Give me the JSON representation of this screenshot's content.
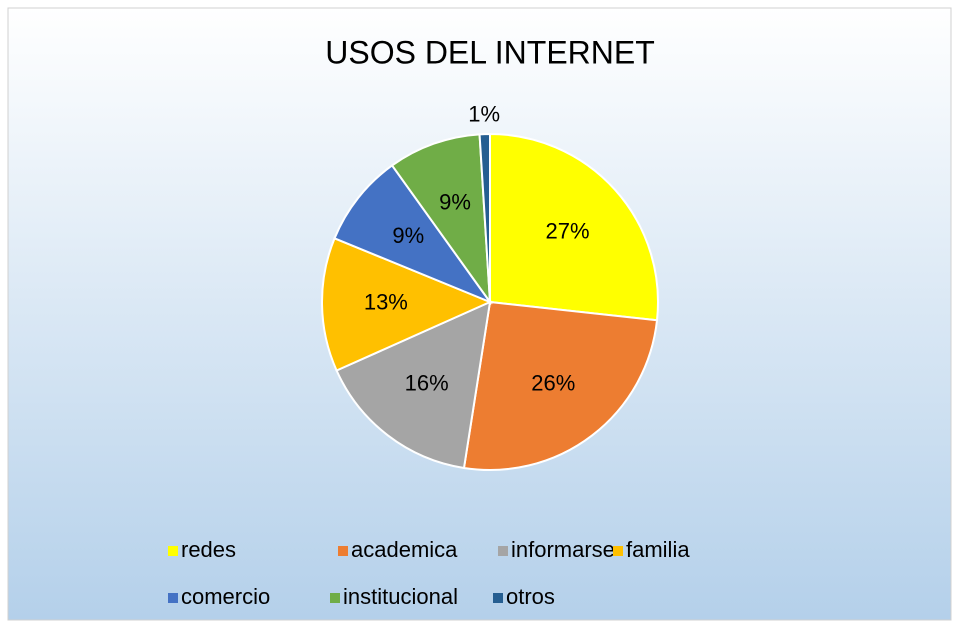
{
  "chart_data": {
    "type": "pie",
    "title": "USOS DEL INTERNET",
    "categories": [
      "redes",
      "academica",
      "informarse",
      "familia",
      "comercio",
      "institucional",
      "otros"
    ],
    "values": [
      27,
      26,
      16,
      13,
      9,
      9,
      1
    ],
    "value_labels": [
      "27%",
      "26%",
      "16%",
      "13%",
      "9%",
      "9%",
      "1%"
    ],
    "colors": [
      "#ffff00",
      "#ed7d31",
      "#a5a5a5",
      "#ffc000",
      "#4472c4",
      "#70ad47",
      "#255e91"
    ],
    "legend": "bottom"
  }
}
